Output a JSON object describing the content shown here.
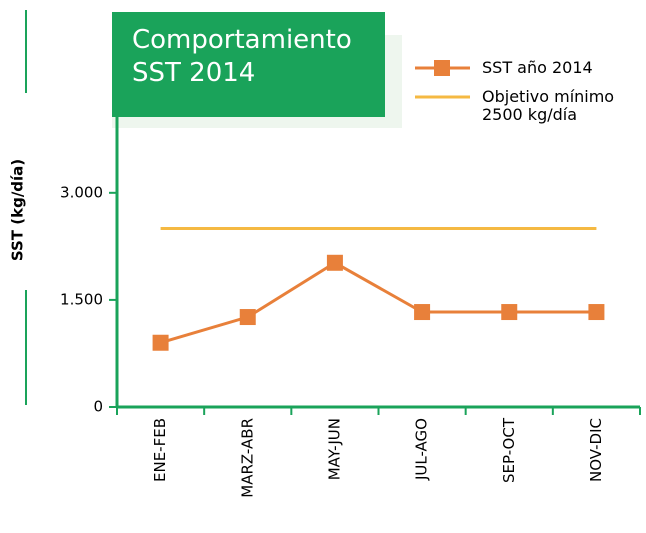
{
  "chart_data": {
    "type": "line",
    "title": "Comportamiento SST 2014",
    "y_label": "SST (kg/día)",
    "categories": [
      "ENE-FEB",
      "MARZ-ABR",
      "MAY-JUN",
      "JUL-AGO",
      "SEP-OCT",
      "NOV-DIC"
    ],
    "series": [
      {
        "name": "SST año 2014",
        "color": "#e8803a",
        "marker": "square",
        "values": [
          900,
          1260,
          2020,
          1330,
          1330,
          1330
        ]
      },
      {
        "name": "Objetivo mínimo 2500 kg/día",
        "color": "#f5b942",
        "values": [
          2500,
          2500,
          2500,
          2500,
          2500,
          2500
        ]
      }
    ],
    "ylim": [
      0,
      4300
    ],
    "yticks": [
      0,
      {
        "value": 1500,
        "label": "1.500"
      },
      {
        "value": 3000,
        "label": "3.000"
      }
    ],
    "grid": false
  }
}
